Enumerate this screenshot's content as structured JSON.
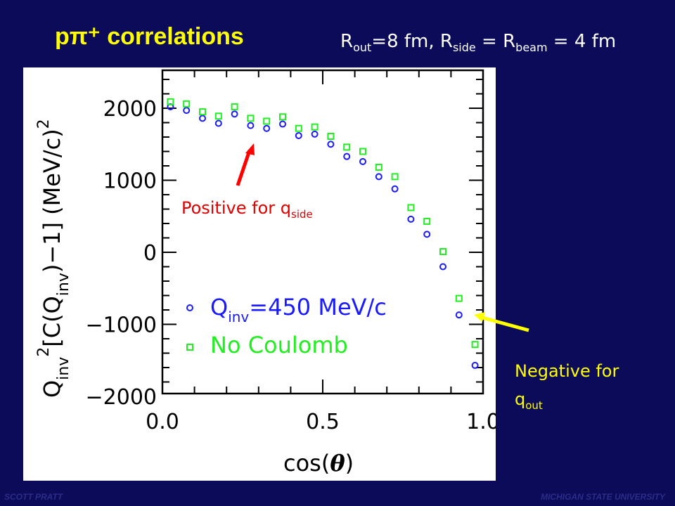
{
  "slide": {
    "title": "pπ⁺ correlations",
    "params_r_out_sym": "R",
    "params_r_out_sub": "out",
    "params_r_out_val": "=8 fm, ",
    "params_r_side_sym": "R",
    "params_r_side_sub": "side",
    "params_eq1": " = ",
    "params_r_beam_sym": "R",
    "params_r_beam_sub": "beam",
    "params_eq2": " = 4 fm",
    "footer_left": "SCOTT PRATT",
    "footer_right": "MICHIGAN STATE UNIVERSITY"
  },
  "annotations": {
    "positive_text": "Positive for q",
    "positive_sub": "side",
    "negative_text": "Negative for",
    "negative_line2": "q",
    "negative_sub": "out"
  },
  "colors": {
    "background": "#0b0b5a",
    "title": "#ffff00",
    "positive_label": "#e00000",
    "negative_label": "#ffff00",
    "series_blue": "#1a1aff",
    "series_green": "#22ee22"
  },
  "chart_data": {
    "type": "scatter",
    "xlabel": "cos(θ)",
    "ylabel": "Q_inv² [C(Q_inv) − 1] (MeV/c)²",
    "xlim": [
      0.0,
      1.0
    ],
    "ylim": [
      -2000,
      2000
    ],
    "xticks": [
      "0.0",
      "0.5",
      "1.0"
    ],
    "yticks": [
      "2000",
      "1000",
      "0",
      "−1000",
      "−2000"
    ],
    "x": [
      0.025,
      0.075,
      0.125,
      0.175,
      0.225,
      0.275,
      0.325,
      0.375,
      0.425,
      0.475,
      0.525,
      0.575,
      0.625,
      0.675,
      0.725,
      0.775,
      0.825,
      0.875,
      0.925,
      0.975
    ],
    "series": [
      {
        "name": "Q_inv=450 MeV/c",
        "marker": "circle",
        "color": "#1a1aff",
        "values": [
          2020,
          1970,
          1860,
          1790,
          1920,
          1760,
          1720,
          1780,
          1620,
          1640,
          1500,
          1330,
          1260,
          1050,
          880,
          460,
          250,
          -200,
          -870,
          -1570
        ]
      },
      {
        "name": "No Coulomb",
        "marker": "square",
        "color": "#22ee22",
        "values": [
          2090,
          2060,
          1950,
          1890,
          2020,
          1860,
          1820,
          1880,
          1720,
          1740,
          1610,
          1460,
          1400,
          1180,
          1050,
          620,
          430,
          10,
          -640,
          -1280
        ]
      }
    ],
    "legend": [
      {
        "marker": "circle",
        "label_main": "Q",
        "label_sub": "inv",
        "label_rest": "=450  MeV/c"
      },
      {
        "marker": "square",
        "label_main": "No  Coulomb",
        "label_sub": "",
        "label_rest": ""
      }
    ],
    "legend_position": "bottom-left"
  }
}
